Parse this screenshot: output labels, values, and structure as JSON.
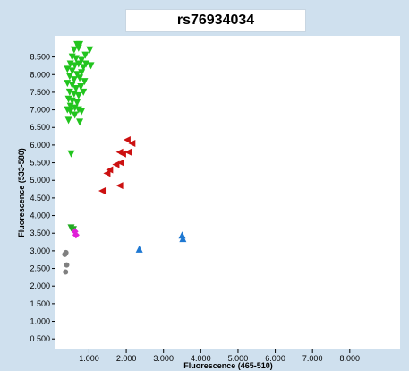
{
  "chart_data": {
    "type": "scatter",
    "title": "rs76934034",
    "xlabel": "Fluorescence (465-510)",
    "ylabel": "Fluorescence (533-580)",
    "xlim": [
      0.1,
      9.35
    ],
    "ylim": [
      0.2,
      9.1
    ],
    "x_ticks": [
      1.0,
      2.0,
      3.0,
      4.0,
      5.0,
      6.0,
      7.0,
      8.0
    ],
    "x_tick_labels": [
      "1.000",
      "2.000",
      "3.000",
      "4.000",
      "5.000",
      "6.000",
      "7.000",
      "8.000"
    ],
    "y_ticks": [
      0.5,
      1.0,
      1.5,
      2.0,
      2.5,
      3.0,
      3.5,
      4.0,
      4.5,
      5.0,
      5.5,
      6.0,
      6.5,
      7.0,
      7.5,
      8.0,
      8.5
    ],
    "y_tick_labels": [
      "0.500",
      "1.000",
      "1.500",
      "2.000",
      "2.500",
      "3.000",
      "3.500",
      "4.000",
      "4.500",
      "5.000",
      "5.500",
      "6.000",
      "6.500",
      "7.000",
      "7.500",
      "8.000",
      "8.500"
    ],
    "grid": false,
    "background_color": "#cfe0ee",
    "plot_background_color": "#ffffff",
    "series": [
      {
        "marker": "triangle-down",
        "color": "#22c41e",
        "points": [
          [
            0.68,
            8.85
          ],
          [
            0.75,
            8.85
          ],
          [
            0.6,
            8.7
          ],
          [
            0.72,
            8.75
          ],
          [
            0.9,
            8.55
          ],
          [
            1.02,
            8.7
          ],
          [
            0.55,
            8.5
          ],
          [
            0.65,
            8.45
          ],
          [
            0.8,
            8.4
          ],
          [
            0.5,
            8.3
          ],
          [
            0.62,
            8.25
          ],
          [
            0.72,
            8.3
          ],
          [
            0.85,
            8.2
          ],
          [
            0.92,
            8.3
          ],
          [
            1.05,
            8.25
          ],
          [
            0.42,
            8.15
          ],
          [
            0.55,
            8.1
          ],
          [
            0.68,
            8.0
          ],
          [
            0.8,
            8.05
          ],
          [
            0.48,
            7.95
          ],
          [
            0.6,
            7.85
          ],
          [
            0.75,
            7.9
          ],
          [
            0.88,
            7.8
          ],
          [
            0.42,
            7.75
          ],
          [
            0.55,
            7.7
          ],
          [
            0.65,
            7.6
          ],
          [
            0.78,
            7.65
          ],
          [
            0.48,
            7.5
          ],
          [
            0.6,
            7.45
          ],
          [
            0.72,
            7.4
          ],
          [
            0.85,
            7.5
          ],
          [
            0.45,
            7.3
          ],
          [
            0.55,
            7.25
          ],
          [
            0.68,
            7.2
          ],
          [
            0.5,
            7.1
          ],
          [
            0.62,
            7.05
          ],
          [
            0.42,
            7.0
          ],
          [
            0.72,
            7.0
          ],
          [
            0.5,
            6.95
          ],
          [
            0.62,
            6.85
          ],
          [
            0.8,
            6.95
          ],
          [
            0.45,
            6.7
          ],
          [
            0.75,
            6.65
          ],
          [
            0.52,
            5.75
          ]
        ]
      },
      {
        "marker": "triangle-left",
        "color": "#cc1111",
        "points": [
          [
            2.02,
            6.15
          ],
          [
            2.15,
            6.05
          ],
          [
            1.82,
            5.8
          ],
          [
            1.9,
            5.75
          ],
          [
            2.05,
            5.8
          ],
          [
            1.85,
            5.5
          ],
          [
            1.72,
            5.45
          ],
          [
            1.55,
            5.3
          ],
          [
            1.48,
            5.2
          ],
          [
            1.82,
            4.85
          ],
          [
            1.35,
            4.7
          ]
        ]
      },
      {
        "marker": "triangle-up",
        "color": "#1e78d2",
        "points": [
          [
            3.5,
            3.45
          ],
          [
            3.52,
            3.35
          ],
          [
            2.35,
            3.05
          ]
        ]
      },
      {
        "marker": "triangle-down",
        "color": "#22aa22",
        "points": [
          [
            0.52,
            3.65
          ],
          [
            0.58,
            3.6
          ]
        ]
      },
      {
        "marker": "diamond",
        "color": "#e020d8",
        "points": [
          [
            0.62,
            3.55
          ],
          [
            0.65,
            3.45
          ]
        ]
      },
      {
        "marker": "circle",
        "color": "#808080",
        "points": [
          [
            0.38,
            2.95
          ],
          [
            0.35,
            2.9
          ],
          [
            0.4,
            2.6
          ],
          [
            0.37,
            2.4
          ]
        ]
      }
    ]
  }
}
